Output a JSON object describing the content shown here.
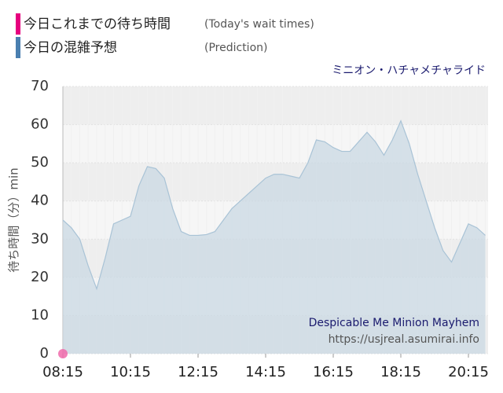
{
  "chart_data": {
    "type": "area",
    "subtitle": "ミニオン・ハチャメチャライド",
    "y_label": "待ち時間（分）min",
    "annotations": [
      "Despicable Me Minion Mayhem",
      "https://usjreal.asumirai.info"
    ],
    "categories": [
      "08:15",
      null,
      null,
      null,
      null,
      null,
      null,
      null,
      "10:15",
      null,
      null,
      null,
      null,
      null,
      null,
      null,
      "12:15",
      null,
      null,
      null,
      null,
      null,
      null,
      null,
      "14:15",
      null,
      null,
      null,
      null,
      null,
      null,
      null,
      "16:15",
      null,
      null,
      null,
      null,
      null,
      null,
      null,
      "18:15",
      null,
      null,
      null,
      null,
      null,
      null,
      null,
      "20:15",
      null,
      null
    ],
    "series": [
      {
        "name": "今日これまでの待ち時間",
        "legend_note": "(Today's wait times)",
        "color": "#f06aaa",
        "values": [
          0,
          null,
          null,
          null,
          null,
          null,
          null,
          null,
          null,
          null,
          null,
          null,
          null,
          null,
          null,
          null,
          null,
          null,
          null,
          null,
          null,
          null,
          null,
          null,
          null,
          null,
          null,
          null,
          null,
          null,
          null,
          null,
          null,
          null,
          null,
          null,
          null,
          null,
          null,
          null,
          null,
          null,
          null,
          null,
          null,
          null,
          null,
          null,
          null,
          null,
          null
        ]
      },
      {
        "name": "今日の混雑予想",
        "legend_note": "(Prediction)",
        "color": "#a9c3d6",
        "values": [
          35,
          33,
          30,
          23,
          17,
          25,
          34,
          35,
          36,
          44,
          49,
          48.5,
          46,
          38,
          32,
          31,
          31,
          31.2,
          32,
          35,
          38,
          40,
          42,
          44,
          46,
          47,
          47,
          46.5,
          46,
          50,
          56,
          55.5,
          54,
          53,
          53,
          55.5,
          58,
          55.5,
          52,
          56,
          61,
          55,
          47,
          40,
          33,
          27,
          24,
          29,
          34,
          33,
          31
        ]
      }
    ],
    "ylim": [
      0,
      70
    ],
    "yticks": [
      0,
      10,
      20,
      30,
      40,
      50,
      60,
      70
    ],
    "grid": true
  }
}
